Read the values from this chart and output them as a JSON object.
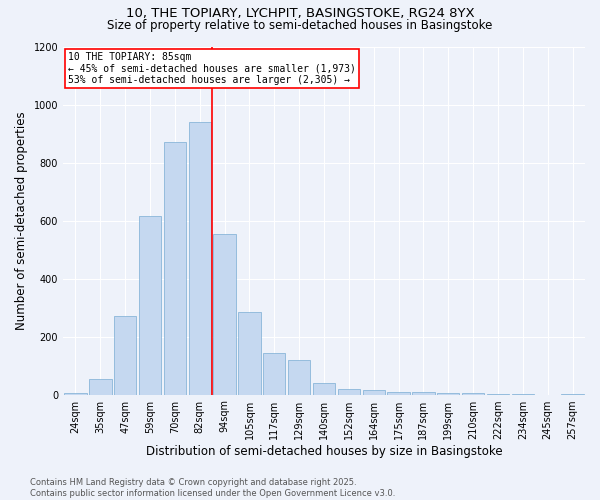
{
  "title1": "10, THE TOPIARY, LYCHPIT, BASINGSTOKE, RG24 8YX",
  "title2": "Size of property relative to semi-detached houses in Basingstoke",
  "xlabel": "Distribution of semi-detached houses by size in Basingstoke",
  "ylabel": "Number of semi-detached properties",
  "categories": [
    "24sqm",
    "35sqm",
    "47sqm",
    "59sqm",
    "70sqm",
    "82sqm",
    "94sqm",
    "105sqm",
    "117sqm",
    "129sqm",
    "140sqm",
    "152sqm",
    "164sqm",
    "175sqm",
    "187sqm",
    "199sqm",
    "210sqm",
    "222sqm",
    "234sqm",
    "245sqm",
    "257sqm"
  ],
  "values": [
    5,
    55,
    270,
    615,
    870,
    940,
    555,
    285,
    145,
    120,
    40,
    20,
    15,
    10,
    8,
    5,
    5,
    3,
    2,
    0,
    2
  ],
  "bar_color": "#c5d8f0",
  "bar_edge_color": "#7aadd4",
  "ylim": [
    0,
    1200
  ],
  "yticks": [
    0,
    200,
    400,
    600,
    800,
    1000,
    1200
  ],
  "pct_smaller": 45,
  "n_smaller": 1973,
  "pct_larger": 53,
  "n_larger": 2305,
  "footnote": "Contains HM Land Registry data © Crown copyright and database right 2025.\nContains public sector information licensed under the Open Government Licence v3.0.",
  "bg_color": "#eef2fa",
  "grid_color": "#ffffff",
  "title_fontsize": 9.5,
  "subtitle_fontsize": 8.5,
  "axis_label_fontsize": 8.5,
  "tick_fontsize": 7,
  "annot_fontsize": 7,
  "footnote_fontsize": 6
}
